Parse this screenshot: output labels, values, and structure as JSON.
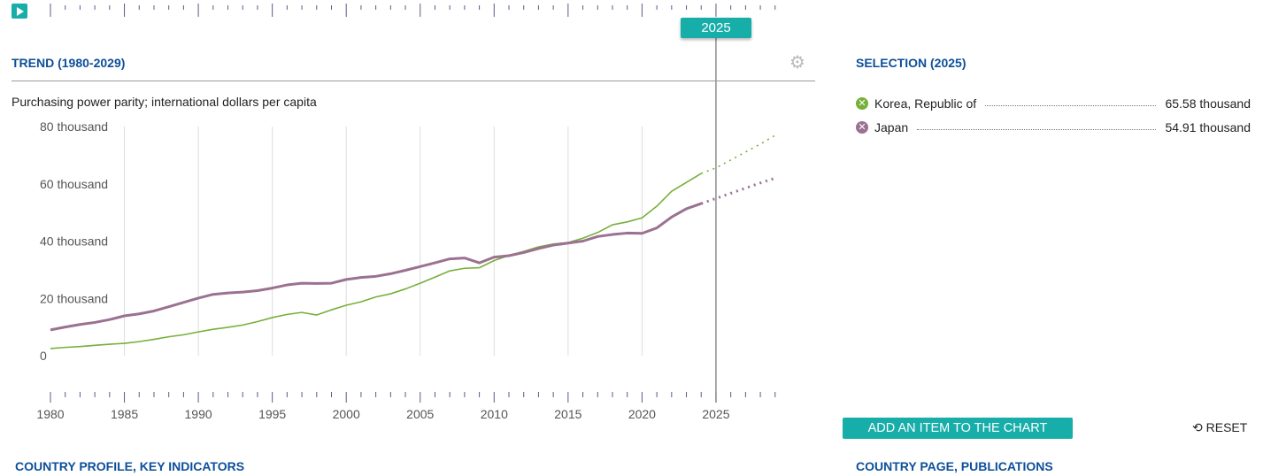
{
  "timeline": {
    "selected_year": "2025",
    "play_icon": "play-icon"
  },
  "trend": {
    "title": "TREND (1980-2029)",
    "unit": "Purchasing power parity; international dollars per capita",
    "settings_icon": "gear-icon"
  },
  "selection": {
    "title": "SELECTION (2025)",
    "items": [
      {
        "name": "Korea, Republic of",
        "value": "65.58 thousand",
        "color": "#76b03a"
      },
      {
        "name": "Japan",
        "value": "54.91 thousand",
        "color": "#9b7192"
      }
    ]
  },
  "buttons": {
    "add_item": "ADD AN ITEM TO THE CHART",
    "reset": "RESET"
  },
  "links": {
    "country_profile": "COUNTRY PROFILE, KEY INDICATORS",
    "country_page": "COUNTRY PAGE, PUBLICATIONS"
  },
  "colors": {
    "accent": "#17ada9",
    "heading": "#0d4f9a"
  },
  "chart_data": {
    "type": "line",
    "ylabel": "Purchasing power parity; international dollars per capita",
    "ylim": [
      0,
      80
    ],
    "xlim": [
      1980,
      2029
    ],
    "yticks": [
      "0",
      "20 thousand",
      "40 thousand",
      "60 thousand",
      "80 thousand"
    ],
    "xticks": [
      "1980",
      "1985",
      "1990",
      "1995",
      "2000",
      "2005",
      "2010",
      "2015",
      "2020",
      "2025"
    ],
    "projection_start": 2024,
    "marker_year": 2025,
    "grid": "vertical",
    "series": [
      {
        "name": "Korea, Republic of",
        "color": "#76b03a",
        "values": [
          2.5,
          2.9,
          3.2,
          3.6,
          4.0,
          4.3,
          4.9,
          5.7,
          6.6,
          7.3,
          8.3,
          9.2,
          9.9,
          10.7,
          11.9,
          13.3,
          14.4,
          15.1,
          14.2,
          16.0,
          17.6,
          18.8,
          20.5,
          21.6,
          23.3,
          25.3,
          27.4,
          29.6,
          30.5,
          30.7,
          33.2,
          35.0,
          36.4,
          38.0,
          39.0,
          39.5,
          41.0,
          43.0,
          45.7,
          46.7,
          48.1,
          52.2,
          57.4,
          60.5,
          63.6,
          65.58,
          68.3,
          71.1,
          73.9,
          76.9
        ]
      },
      {
        "name": "Japan",
        "color": "#9b7192",
        "values": [
          9.0,
          10.0,
          10.9,
          11.6,
          12.6,
          13.9,
          14.6,
          15.6,
          17.1,
          18.6,
          20.1,
          21.4,
          21.9,
          22.2,
          22.7,
          23.6,
          24.7,
          25.3,
          25.2,
          25.3,
          26.6,
          27.3,
          27.7,
          28.6,
          29.8,
          31.1,
          32.4,
          33.8,
          34.1,
          32.4,
          34.4,
          34.9,
          36.0,
          37.4,
          38.6,
          39.3,
          40.0,
          41.6,
          42.3,
          42.8,
          42.7,
          44.6,
          48.4,
          51.3,
          53.1,
          54.91,
          56.7,
          58.5,
          60.3,
          62.0
        ]
      }
    ]
  }
}
